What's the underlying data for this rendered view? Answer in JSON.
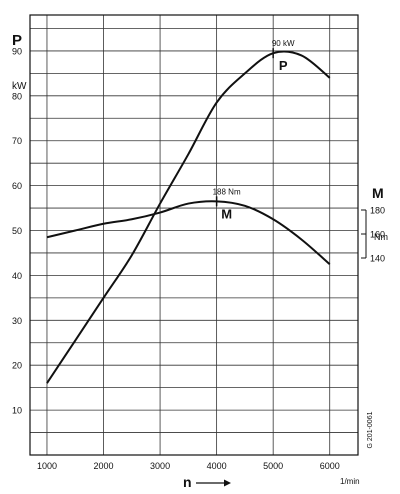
{
  "chart_data": {
    "type": "line",
    "x_label": "n",
    "x_unit": "1/min",
    "x_ticks": [
      1000,
      2000,
      3000,
      4000,
      5000,
      6000
    ],
    "x_range": [
      700,
      6500
    ],
    "left_axis": {
      "symbol": "P",
      "unit": "kW",
      "ticks": [
        10,
        20,
        30,
        40,
        50,
        60,
        70,
        80,
        90
      ],
      "range": [
        0,
        98
      ]
    },
    "right_axis": {
      "symbol": "M",
      "unit": "Nm",
      "ticks": [
        140,
        160,
        180
      ]
    },
    "series": [
      {
        "name": "P",
        "axis": "left",
        "points": [
          [
            1000,
            16
          ],
          [
            1500,
            25.5
          ],
          [
            2000,
            35
          ],
          [
            2500,
            44.5
          ],
          [
            3000,
            56
          ],
          [
            3500,
            67
          ],
          [
            4000,
            78.5
          ],
          [
            4500,
            85
          ],
          [
            5000,
            89.5
          ],
          [
            5500,
            89
          ],
          [
            6000,
            84
          ]
        ],
        "peak_label": "90 kW",
        "peak_x": 5000
      },
      {
        "name": "M",
        "axis": "right",
        "points": [
          [
            1000,
            48.5
          ],
          [
            1500,
            50
          ],
          [
            2000,
            51.5
          ],
          [
            2500,
            52.5
          ],
          [
            3000,
            54
          ],
          [
            3500,
            56
          ],
          [
            4000,
            56.5
          ],
          [
            4500,
            55.5
          ],
          [
            5000,
            52.5
          ],
          [
            5500,
            48
          ],
          [
            6000,
            42.5
          ]
        ],
        "peak_label": "188 Nm",
        "peak_x": 4000
      }
    ],
    "grid": true,
    "code_text": "G 201-0061"
  }
}
